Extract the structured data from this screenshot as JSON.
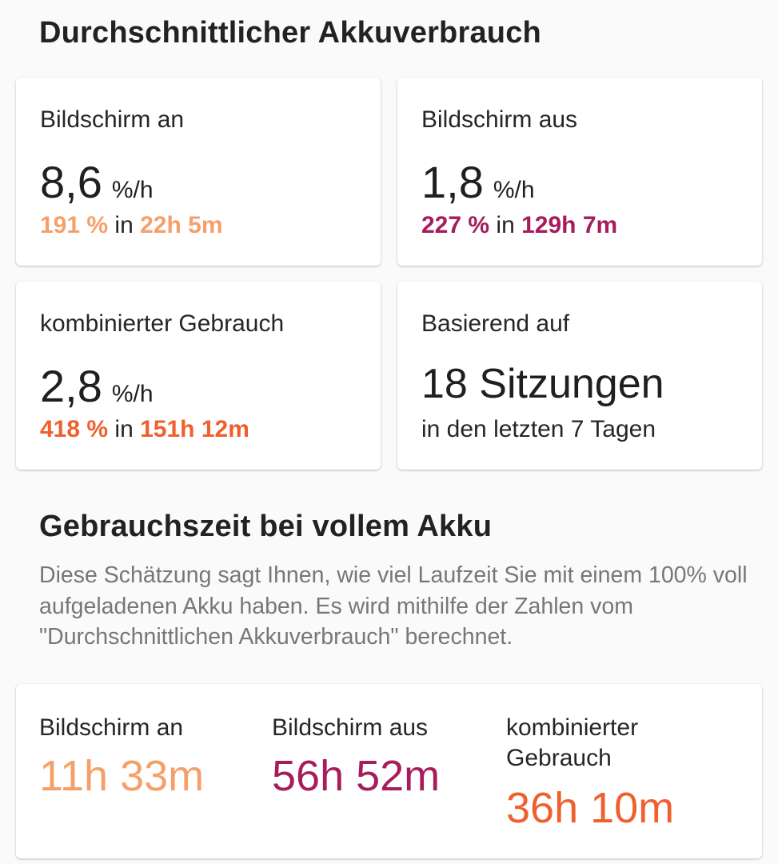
{
  "avg_section": {
    "title": "Durchschnittlicher Akkuverbrauch",
    "screen_on": {
      "label": "Bildschirm an",
      "rate": "8,6",
      "unit": "%/h",
      "percent": "191 %",
      "connector": " in ",
      "duration": "22h 5m",
      "color": "#f5a06a"
    },
    "screen_off": {
      "label": "Bildschirm aus",
      "rate": "1,8",
      "unit": "%/h",
      "percent": "227 %",
      "connector": " in ",
      "duration": "129h 7m",
      "color": "#a61c5c"
    },
    "combined": {
      "label": "kombinierter Gebrauch",
      "rate": "2,8",
      "unit": "%/h",
      "percent": "418 %",
      "connector": " in ",
      "duration": "151h 12m",
      "color": "#f0602e"
    },
    "sessions": {
      "label": "Basierend auf",
      "value": "18 Sitzungen",
      "sub": "in den letzten 7 Tagen"
    }
  },
  "full_section": {
    "title": "Gebrauchszeit bei vollem Akku",
    "description": "Diese Schätzung sagt Ihnen, wie viel Laufzeit Sie mit einem 100% voll aufgeladenen Akku haben. Es wird mithilfe der Zahlen vom \"Durchschnittlichen Akkuverbrauch\" berechnet.",
    "screen_on": {
      "label": "Bildschirm an",
      "value": "11h 33m",
      "color": "#f5a06a"
    },
    "screen_off": {
      "label": "Bildschirm aus",
      "value": "56h 52m",
      "color": "#a61c5c"
    },
    "combined": {
      "label": "kombinierter Gebrauch",
      "value": "36h 10m",
      "color": "#f0602e"
    }
  }
}
